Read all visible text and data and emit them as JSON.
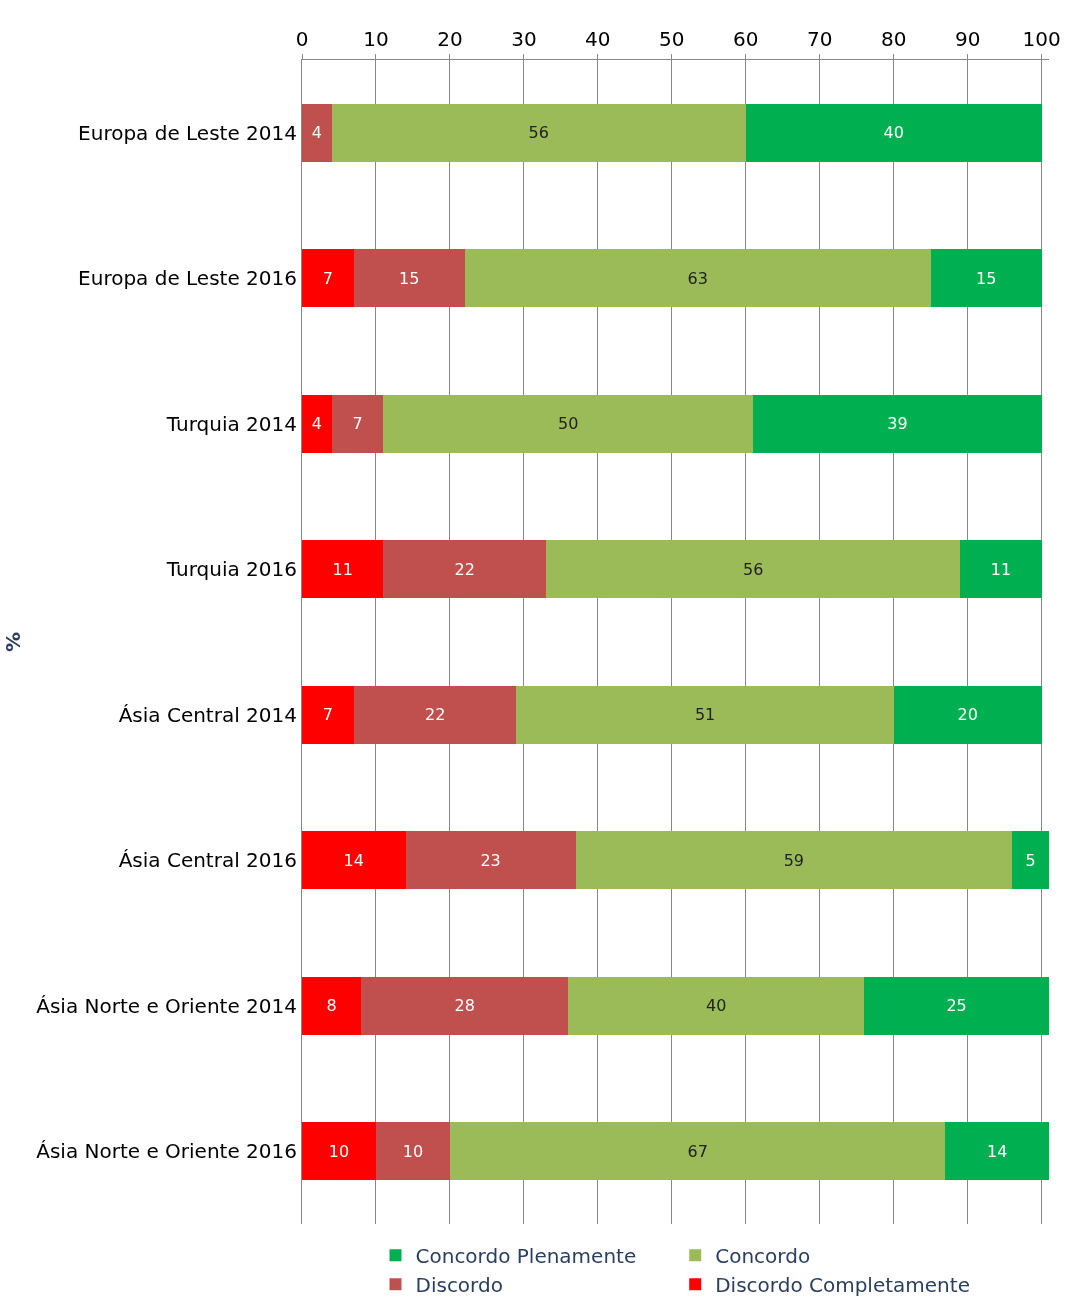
{
  "chart_data": {
    "type": "bar",
    "orientation": "horizontal",
    "stacked": true,
    "ylabel": "%",
    "categories": [
      "Europa de Leste 2014",
      "Europa de Leste 2016",
      "Turquia 2014",
      "Turquia 2016",
      "Ásia Central 2014",
      "Ásia Central 2016",
      "Ásia Norte e Oriente 2014",
      "Ásia Norte e Oriente 2016"
    ],
    "series": [
      {
        "name": "Discordo Completamente",
        "color": "#ff0000",
        "values": [
          null,
          7,
          4,
          11,
          7,
          14,
          8,
          10
        ]
      },
      {
        "name": "Discordo",
        "color": "#c0504d",
        "values": [
          4,
          15,
          7,
          22,
          22,
          23,
          28,
          10
        ]
      },
      {
        "name": "Concordo",
        "color": "#9bbb59",
        "values": [
          56,
          63,
          50,
          56,
          51,
          59,
          40,
          67
        ]
      },
      {
        "name": "Concordo Plenamente",
        "color": "#00b050",
        "values": [
          40,
          15,
          39,
          11,
          20,
          5,
          25,
          14
        ]
      }
    ],
    "xlim": [
      0,
      101
    ],
    "xticks": [
      0,
      10,
      20,
      30,
      40,
      50,
      60,
      70,
      80,
      90,
      100
    ],
    "grid": "x",
    "legend": "bottom",
    "data_labels": true
  }
}
